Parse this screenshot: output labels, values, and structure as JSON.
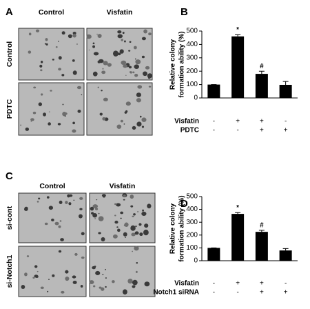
{
  "panel_labels": [
    "A",
    "B",
    "C",
    "D"
  ],
  "image_panels": [
    {
      "columns": [
        "Control",
        "Visfatin"
      ],
      "rows": [
        "Control",
        "PDTC"
      ]
    },
    {
      "columns": [
        "Control",
        "Visfatin"
      ],
      "rows": [
        "si-cont",
        "si-Notch1"
      ]
    }
  ],
  "chart_data": [
    {
      "type": "bar",
      "ylabel": [
        "Relative colony",
        "formation ability (%)"
      ],
      "values": [
        100,
        460,
        180,
        98
      ],
      "errors": [
        0,
        12,
        20,
        25
      ],
      "annotations": [
        null,
        "*",
        "#",
        null
      ],
      "color": "#000000",
      "ylim": [
        0,
        500
      ],
      "yticks": [
        0,
        100,
        200,
        300,
        400,
        500
      ],
      "conditions": [
        {
          "name": "Visfatin",
          "signs": [
            "-",
            "+",
            "+",
            "-"
          ]
        },
        {
          "name": "PDTC",
          "signs": [
            "-",
            "-",
            "+",
            "+"
          ]
        }
      ]
    },
    {
      "type": "bar",
      "ylabel": [
        "Relative colony",
        "formation ability (%)"
      ],
      "values": [
        100,
        365,
        225,
        80
      ],
      "errors": [
        0,
        10,
        12,
        15
      ],
      "annotations": [
        null,
        "*",
        "#",
        null
      ],
      "color": "#000000",
      "ylim": [
        0,
        500
      ],
      "yticks": [
        0,
        100,
        200,
        300,
        400,
        500
      ],
      "conditions": [
        {
          "name": "Visfatin",
          "signs": [
            "-",
            "+",
            "+",
            "-"
          ]
        },
        {
          "name": "Notch1 siRNA",
          "signs": [
            "-",
            "-",
            "+",
            "+"
          ]
        }
      ]
    }
  ]
}
